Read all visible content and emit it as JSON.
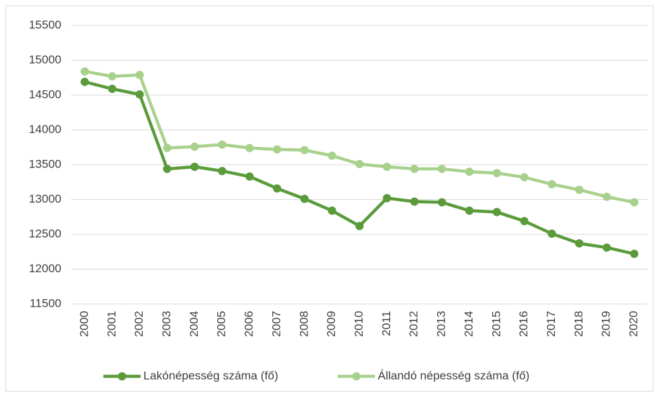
{
  "chart_data": {
    "type": "line",
    "categories": [
      "2000",
      "2001",
      "2002",
      "2003",
      "2004",
      "2005",
      "2006",
      "2007",
      "2008",
      "2009",
      "2010",
      "2011",
      "2012",
      "2013",
      "2014",
      "2015",
      "2016",
      "2017",
      "2018",
      "2019",
      "2020"
    ],
    "series": [
      {
        "name": "Lakónépesség száma (fő)",
        "color": "#5b9b3c",
        "values": [
          14690,
          14590,
          14510,
          13440,
          13470,
          13410,
          13330,
          13160,
          13010,
          12840,
          12620,
          13020,
          12970,
          12960,
          12840,
          12820,
          12690,
          12510,
          12370,
          12310,
          12220
        ]
      },
      {
        "name": "Állandó népesség száma (fő)",
        "color": "#a9d18e",
        "values": [
          14840,
          14770,
          14790,
          13740,
          13760,
          13790,
          13740,
          13720,
          13710,
          13630,
          13510,
          13470,
          13440,
          13440,
          13400,
          13380,
          13320,
          13220,
          13140,
          13040,
          12960
        ]
      }
    ],
    "ylim": [
      11500,
      15500
    ],
    "yticks": [
      11500,
      12000,
      12500,
      13000,
      13500,
      14000,
      14500,
      15000,
      15500
    ],
    "grid": true,
    "legend": "bottom"
  }
}
